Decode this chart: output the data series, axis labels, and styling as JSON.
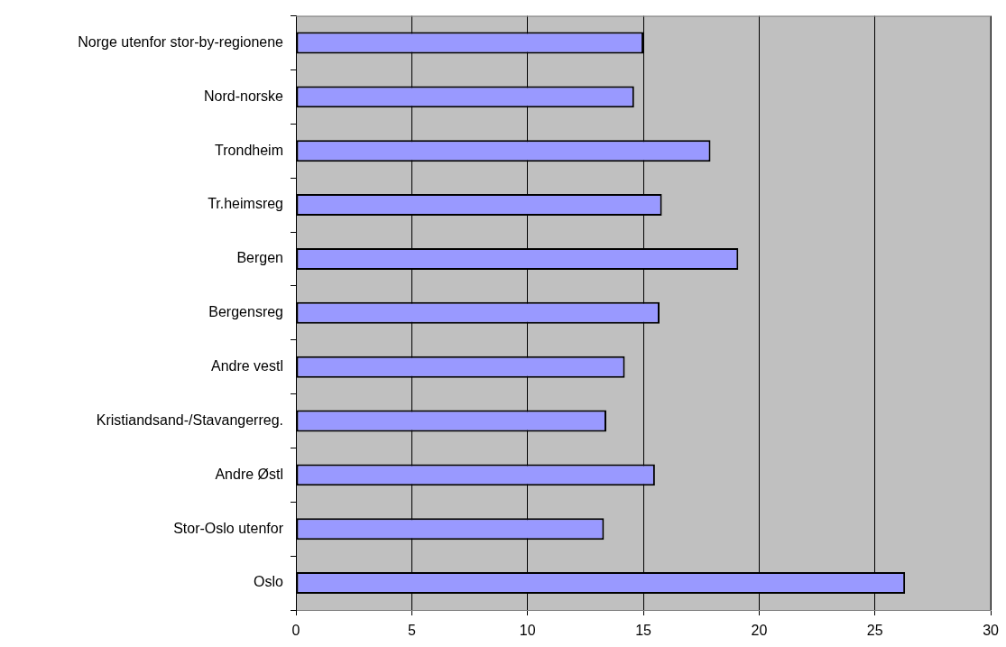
{
  "chart_data": {
    "type": "bar",
    "orientation": "horizontal",
    "categories": [
      "Norge utenfor stor-by-regionene",
      "Nord-norske",
      "Trondheim",
      "Tr.heimsreg",
      "Bergen",
      "Bergensreg",
      "Andre vestl",
      "Kristiandsand-/Stavangerreg.",
      "Andre Østl",
      "Stor-Oslo utenfor",
      "Oslo"
    ],
    "values": [
      15.0,
      14.6,
      17.9,
      15.8,
      19.1,
      15.7,
      14.2,
      13.4,
      15.5,
      13.3,
      26.3
    ],
    "color": "#9999ff",
    "xlim": [
      0,
      30
    ],
    "xticks": [
      0,
      5,
      10,
      15,
      20,
      25,
      30
    ],
    "grid": "x"
  }
}
